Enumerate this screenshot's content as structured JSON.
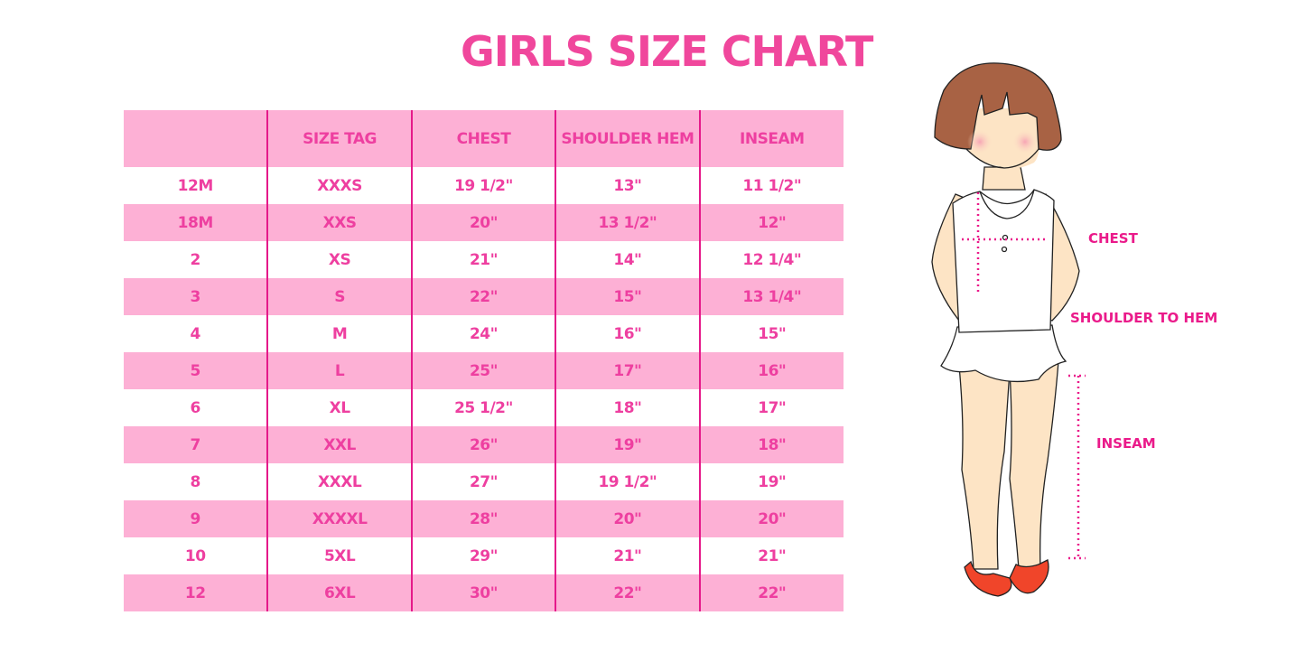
{
  "title": "GIRLS SIZE CHART",
  "table": {
    "headers": [
      "",
      "SIZE TAG",
      "CHEST",
      "SHOULDER HEM",
      "INSEAM"
    ],
    "rows": [
      [
        "12M",
        "XXXS",
        "19 1/2\"",
        "13\"",
        "11 1/2\""
      ],
      [
        "18M",
        "XXS",
        "20\"",
        "13 1/2\"",
        "12\""
      ],
      [
        "2",
        "XS",
        "21\"",
        "14\"",
        "12 1/4\""
      ],
      [
        "3",
        "S",
        "22\"",
        "15\"",
        "13 1/4\""
      ],
      [
        "4",
        "M",
        "24\"",
        "16\"",
        "15\""
      ],
      [
        "5",
        "L",
        "25\"",
        "17\"",
        "16\""
      ],
      [
        "6",
        "XL",
        "25 1/2\"",
        "18\"",
        "17\""
      ],
      [
        "7",
        "XXL",
        "26\"",
        "19\"",
        "18\""
      ],
      [
        "8",
        "XXXL",
        "27\"",
        "19 1/2\"",
        "19\""
      ],
      [
        "9",
        "XXXXL",
        "28\"",
        "20\"",
        "20\""
      ],
      [
        "10",
        "5XL",
        "29\"",
        "21\"",
        "21\""
      ],
      [
        "12",
        "6XL",
        "30\"",
        "22\"",
        "22\""
      ]
    ]
  },
  "figure": {
    "chest_label": "CHEST",
    "shoulder_label": "SHOULDER TO HEM",
    "inseam_label": "INSEAM"
  },
  "colors": {
    "accent": "#ee3fa0",
    "row_pink": "#fdb0d5",
    "divider": "#e5198a"
  }
}
